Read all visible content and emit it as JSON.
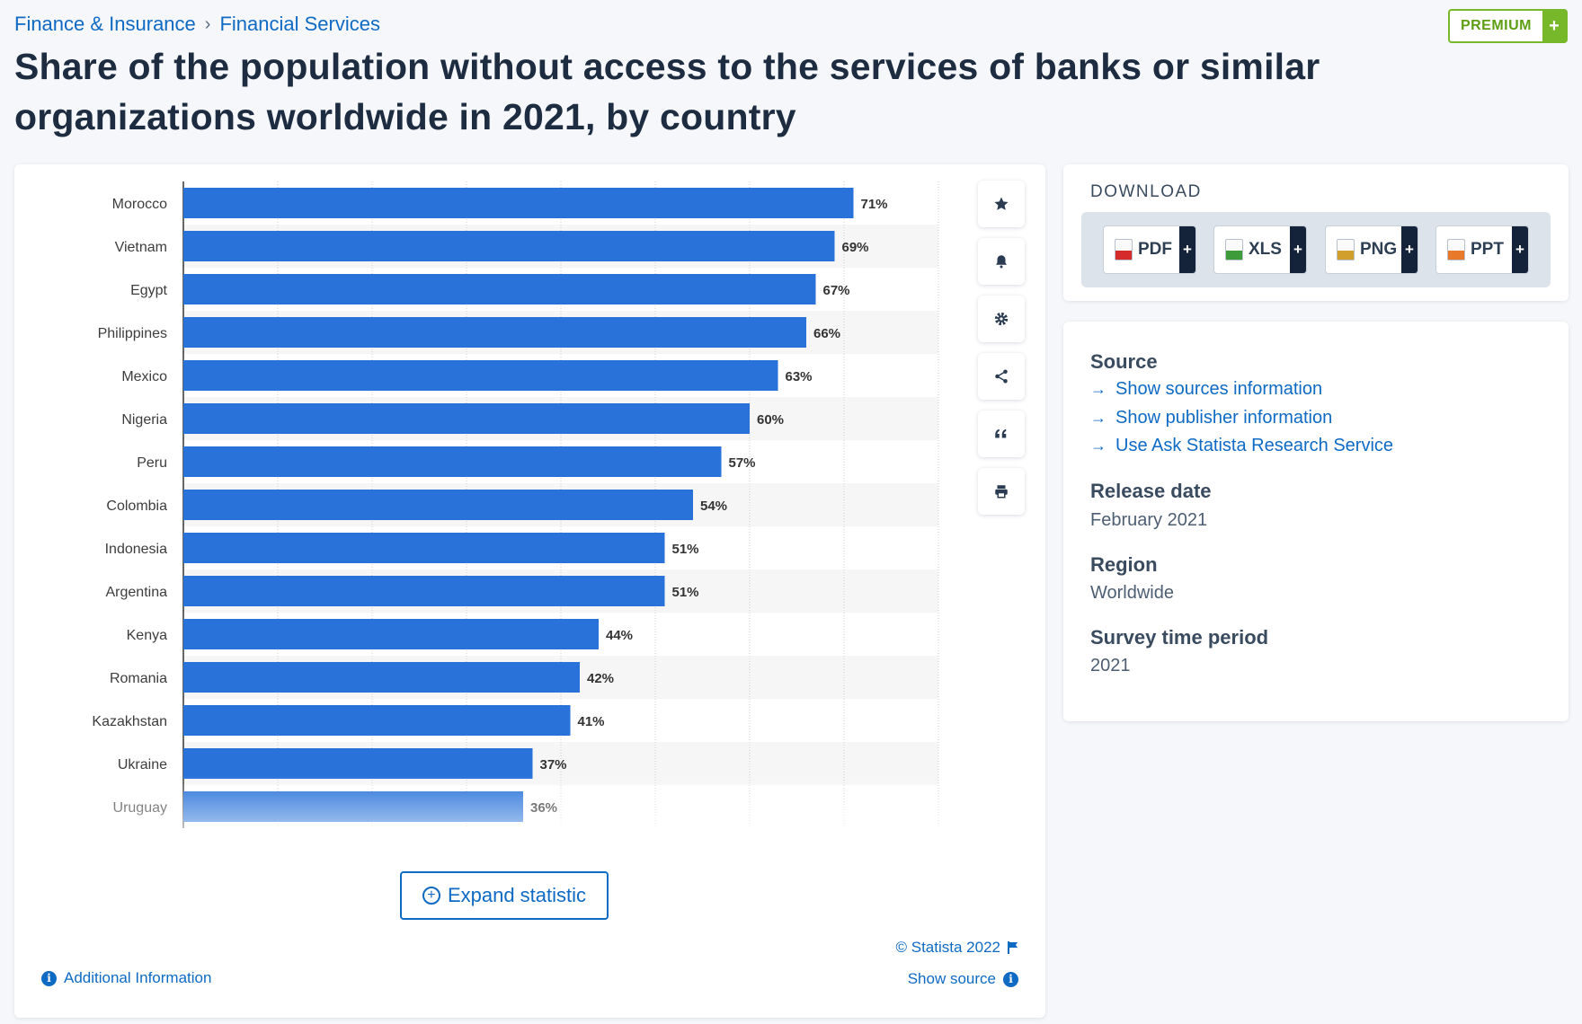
{
  "breadcrumb": {
    "items": [
      "Finance & Insurance",
      "Financial Services"
    ],
    "separator": "›"
  },
  "premium": {
    "label": "PREMIUM",
    "plus": "+"
  },
  "page_title": "Share of the population without access to the services of banks or similar organizations worldwide in 2021, by country",
  "chart_data": {
    "type": "bar",
    "orientation": "horizontal",
    "title": "",
    "xlabel": "",
    "ylabel": "",
    "categories": [
      "Morocco",
      "Vietnam",
      "Egypt",
      "Philippines",
      "Mexico",
      "Nigeria",
      "Peru",
      "Colombia",
      "Indonesia",
      "Argentina",
      "Kenya",
      "Romania",
      "Kazakhstan",
      "Ukraine",
      "Uruguay"
    ],
    "values": [
      71,
      69,
      67,
      66,
      63,
      60,
      57,
      54,
      51,
      51,
      44,
      42,
      41,
      37,
      36
    ],
    "value_labels": [
      "71%",
      "69%",
      "67%",
      "66%",
      "63%",
      "60%",
      "57%",
      "54%",
      "51%",
      "51%",
      "44%",
      "42%",
      "41%",
      "37%",
      "36%"
    ],
    "xlim": [
      0,
      80
    ],
    "grid": true,
    "legend": "none",
    "bar_color": "#2872d9"
  },
  "toolbar_icons": [
    "star-icon",
    "bell-icon",
    "gear-icon",
    "share-icon",
    "quote-icon",
    "print-icon"
  ],
  "expand": {
    "label": "Expand statistic",
    "icon": "⊕"
  },
  "footer": {
    "copyright": "© Statista 2022",
    "show_source": "Show source",
    "additional_info": "Additional Information"
  },
  "download": {
    "title": "DOWNLOAD",
    "buttons": [
      {
        "label": "PDF",
        "color": "#d62b2b"
      },
      {
        "label": "XLS",
        "color": "#3e9b3a"
      },
      {
        "label": "PNG",
        "color": "#d1a02c"
      },
      {
        "label": "PPT",
        "color": "#e8782a"
      }
    ],
    "plus": "+"
  },
  "info": {
    "source_heading": "Source",
    "source_links": [
      "Show sources information",
      "Show publisher information",
      "Use Ask Statista Research Service"
    ],
    "release_heading": "Release date",
    "release_value": "February 2021",
    "region_heading": "Region",
    "region_value": "Worldwide",
    "period_heading": "Survey time period",
    "period_value": "2021"
  }
}
